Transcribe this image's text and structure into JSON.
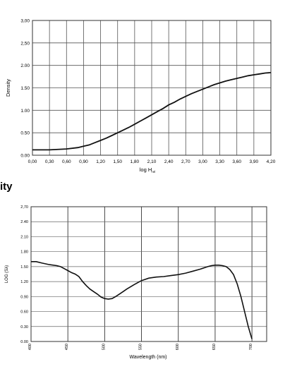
{
  "section_title": "ity",
  "chart_data": [
    {
      "type": "line",
      "title": "",
      "ylabel": "Density",
      "xlabel_main": "log H",
      "xlabel_sub": "rel",
      "xlim": [
        0,
        4.2
      ],
      "ylim": [
        0,
        3.0
      ],
      "xticks": [
        "0,00",
        "0,30",
        "0,60",
        "0,90",
        "1,20",
        "1,50",
        "1,80",
        "2,10",
        "2,40",
        "2,70",
        "3,00",
        "3,30",
        "3,60",
        "3,90",
        "4,20"
      ],
      "yticks": [
        "0.00",
        "0.50",
        "1.00",
        "1.50",
        "2.00",
        "2,50",
        "3,00"
      ],
      "grid": true,
      "series": [
        {
          "x": [
            0,
            0.3,
            0.6,
            0.8,
            0.9,
            1.0,
            1.1,
            1.2,
            1.3,
            1.4,
            1.5,
            1.6,
            1.7,
            1.8,
            1.9,
            2.0,
            2.1,
            2.2,
            2.3,
            2.4,
            2.5,
            2.6,
            2.7,
            2.8,
            2.9,
            3.0,
            3.1,
            3.2,
            3.3,
            3.4,
            3.5,
            3.6,
            3.7,
            3.8,
            3.9,
            4.0,
            4.1,
            4.2
          ],
          "y": [
            0.12,
            0.12,
            0.14,
            0.17,
            0.2,
            0.23,
            0.28,
            0.33,
            0.38,
            0.44,
            0.5,
            0.56,
            0.62,
            0.69,
            0.76,
            0.83,
            0.9,
            0.97,
            1.04,
            1.12,
            1.18,
            1.25,
            1.31,
            1.37,
            1.42,
            1.47,
            1.52,
            1.57,
            1.61,
            1.65,
            1.68,
            1.71,
            1.74,
            1.77,
            1.79,
            1.81,
            1.83,
            1.84
          ]
        }
      ]
    },
    {
      "type": "line",
      "title": "",
      "ylabel": "LOG (Sλ)",
      "xlabel": "Wavelength (nm)",
      "xlim": [
        400,
        720
      ],
      "ylim": [
        0,
        2.7
      ],
      "xtick_values": [
        400,
        450,
        500,
        550,
        600,
        650,
        700
      ],
      "xticks": [
        "400",
        "450",
        "500",
        "550",
        "600",
        "650",
        "700"
      ],
      "yticks": [
        "0.00",
        "0.30",
        "0.60",
        "0.90",
        "1.20",
        "1.50",
        "1.80",
        "2.10",
        "2.40",
        "2,70"
      ],
      "grid": true,
      "series": [
        {
          "x": [
            400,
            407,
            415,
            425,
            435,
            440,
            445,
            450,
            455,
            460,
            465,
            470,
            475,
            480,
            485,
            490,
            495,
            500,
            505,
            510,
            515,
            520,
            525,
            530,
            540,
            550,
            560,
            570,
            580,
            590,
            600,
            610,
            620,
            630,
            640,
            645,
            650,
            655,
            660,
            665,
            670,
            675,
            680,
            685,
            690,
            695,
            700
          ],
          "y": [
            1.6,
            1.6,
            1.57,
            1.54,
            1.52,
            1.5,
            1.46,
            1.42,
            1.38,
            1.35,
            1.3,
            1.2,
            1.12,
            1.05,
            1.0,
            0.95,
            0.89,
            0.86,
            0.85,
            0.86,
            0.9,
            0.95,
            1.0,
            1.05,
            1.14,
            1.22,
            1.27,
            1.29,
            1.3,
            1.32,
            1.34,
            1.37,
            1.41,
            1.45,
            1.5,
            1.52,
            1.53,
            1.53,
            1.52,
            1.5,
            1.44,
            1.34,
            1.15,
            0.9,
            0.6,
            0.3,
            0.05
          ]
        }
      ]
    }
  ]
}
